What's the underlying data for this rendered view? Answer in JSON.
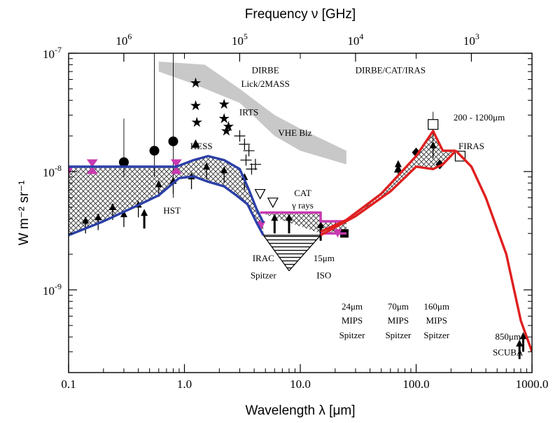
{
  "chart_data": {
    "type": "line",
    "title": "",
    "xlabel": "Wavelength λ [μm]",
    "ylabel": "W m⁻² sr⁻¹",
    "x2label": "Frequency ν [GHz]",
    "x_scale": "log",
    "y_scale": "log",
    "xlim": [
      0.1,
      1000
    ],
    "ylim": [
      2e-10,
      1e-07
    ],
    "x_ticks": [
      {
        "v": 0.1,
        "label": "0.1"
      },
      {
        "v": 1,
        "label": "1.0"
      },
      {
        "v": 10,
        "label": "10.0"
      },
      {
        "v": 100,
        "label": "100.0"
      },
      {
        "v": 1000,
        "label": "1000.0"
      }
    ],
    "y_ticks": [
      {
        "v": 1e-09,
        "base": "10",
        "exp": "-9"
      },
      {
        "v": 1e-08,
        "base": "10",
        "exp": "-8"
      },
      {
        "v": 1e-07,
        "base": "10",
        "exp": "-7"
      }
    ],
    "top_ticks": [
      {
        "v": 1000000,
        "base": "10",
        "exp": "6"
      },
      {
        "v": 100000,
        "base": "10",
        "exp": "5"
      },
      {
        "v": 10000,
        "base": "10",
        "exp": "4"
      },
      {
        "v": 1000,
        "base": "10",
        "exp": "3"
      }
    ],
    "grey_bands": [
      {
        "label": "DIRBE",
        "upper": [
          [
            0.6,
            8.5e-08
          ],
          [
            1.5,
            8e-08
          ],
          [
            3,
            5e-08
          ],
          [
            6,
            3e-08
          ],
          [
            10,
            2.3e-08
          ],
          [
            25,
            1.5e-08
          ]
        ],
        "lower": [
          [
            25,
            1.15e-08
          ],
          [
            10,
            1.5e-08
          ],
          [
            6,
            2e-08
          ],
          [
            3,
            3.8e-08
          ],
          [
            1.2,
            5.5e-08
          ],
          [
            0.6,
            7e-08
          ]
        ]
      }
    ],
    "series": [
      {
        "name": "",
        "color": "#2b3fa8",
        "upper": [
          [
            0.1,
            1.1e-08
          ],
          [
            0.3,
            1.1e-08
          ],
          [
            0.6,
            1.1e-08
          ],
          [
            0.85,
            1.1e-08
          ],
          [
            1.2,
            1.25e-08
          ],
          [
            1.6,
            1.35e-08
          ],
          [
            2.2,
            1.25e-08
          ],
          [
            3,
            1.05e-08
          ],
          [
            3.6,
            7e-09
          ],
          [
            4.2,
            4.8e-09
          ],
          [
            4.8,
            3.7e-09
          ]
        ],
        "lower": [
          [
            4.8,
            2.9e-09
          ],
          [
            4.2,
            3.7e-09
          ],
          [
            3.5,
            5.3e-09
          ],
          [
            2.8,
            6.3e-09
          ],
          [
            2.2,
            7.5e-09
          ],
          [
            1.6,
            8.2e-09
          ],
          [
            1.2,
            9.1e-09
          ],
          [
            0.9,
            8.8e-09
          ],
          [
            0.6,
            6.3e-09
          ],
          [
            0.4,
            5.2e-09
          ],
          [
            0.2,
            3.8e-09
          ],
          [
            0.1,
            2.9e-09
          ]
        ]
      },
      {
        "name": "",
        "color": "#000000",
        "upper": [
          [
            4.8,
            2.9e-09
          ],
          [
            15,
            2.9e-09
          ]
        ],
        "lower": [
          [
            15,
            2.9e-09
          ],
          [
            8,
            1.45e-09
          ],
          [
            4.8,
            2.9e-09
          ]
        ]
      },
      {
        "name": "",
        "color": "#c83ab0",
        "upper": [
          [
            4.5,
            4.5e-09
          ],
          [
            15,
            4.5e-09
          ],
          [
            15,
            3.8e-09
          ],
          [
            25,
            3.8e-09
          ]
        ],
        "lower": [
          [
            25,
            3e-09
          ],
          [
            15,
            3e-09
          ]
        ]
      },
      {
        "name": "",
        "color": "#e01f1f",
        "upper": [
          [
            15,
            3.1e-09
          ],
          [
            25,
            3.9e-09
          ],
          [
            50,
            6.5e-09
          ],
          [
            100,
            1.35e-08
          ],
          [
            140,
            2.2e-08
          ],
          [
            170,
            1.5e-08
          ],
          [
            220,
            1.5e-08
          ]
        ],
        "lower": [
          [
            220,
            1.5e-08
          ],
          [
            170,
            1.15e-08
          ],
          [
            140,
            1.05e-08
          ],
          [
            100,
            1.1e-08
          ],
          [
            60,
            6.8e-09
          ],
          [
            30,
            4.2e-09
          ],
          [
            15,
            2.9e-09
          ]
        ],
        "tail": [
          [
            220,
            1.5e-08
          ],
          [
            300,
            1.1e-08
          ],
          [
            400,
            6e-09
          ],
          [
            600,
            2e-09
          ],
          [
            800,
            5.5e-10
          ],
          [
            1000,
            3e-10
          ]
        ]
      }
    ],
    "annotations": [
      {
        "text": "DIRBE",
        "x": 5.0,
        "y": 6.8e-08
      },
      {
        "text": "Lick/2MASS",
        "x": 5.0,
        "y": 5.2e-08
      },
      {
        "text": "IRTS",
        "x": 3.6,
        "y": 3e-08
      },
      {
        "text": "VHE Blz",
        "x": 9.0,
        "y": 2e-08
      },
      {
        "text": "DIRBE/CAT/IRAS",
        "x": 60,
        "y": 6.8e-08
      },
      {
        "text": "200 - 1200μm",
        "x": 350,
        "y": 2.7e-08
      },
      {
        "text": "FIRAS",
        "x": 300,
        "y": 1.55e-08
      },
      {
        "text": "HESS",
        "x": 1.4,
        "y": 1.55e-08
      },
      {
        "text": "CAT",
        "x": 10.5,
        "y": 6.2e-09
      },
      {
        "text": "γ rays",
        "x": 10.5,
        "y": 4.9e-09
      },
      {
        "text": "HST",
        "x": 0.78,
        "y": 4.4e-09
      },
      {
        "text": "IRAC",
        "x": 4.8,
        "y": 1.75e-09
      },
      {
        "text": "Spitzer",
        "x": 4.8,
        "y": 1.25e-09
      },
      {
        "text": "15μm",
        "x": 16,
        "y": 1.75e-09
      },
      {
        "text": "ISO",
        "x": 16,
        "y": 1.25e-09
      },
      {
        "text": "24μm",
        "x": 28,
        "y": 6.8e-10
      },
      {
        "text": "MIPS",
        "x": 28,
        "y": 5.2e-10
      },
      {
        "text": "Spitzer",
        "x": 28,
        "y": 3.9e-10
      },
      {
        "text": "70μm",
        "x": 70,
        "y": 6.8e-10
      },
      {
        "text": "MIPS",
        "x": 70,
        "y": 5.2e-10
      },
      {
        "text": "Spitzer",
        "x": 70,
        "y": 3.9e-10
      },
      {
        "text": "160μm",
        "x": 150,
        "y": 6.8e-10
      },
      {
        "text": "MIPS",
        "x": 150,
        "y": 5.2e-10
      },
      {
        "text": "Spitzer",
        "x": 150,
        "y": 3.9e-10
      },
      {
        "text": "850μm",
        "x": 620,
        "y": 3.8e-10
      },
      {
        "text": "SCUBA",
        "x": 620,
        "y": 2.8e-10
      }
    ],
    "points": [
      {
        "x": 0.3,
        "y": 1.2e-08,
        "sym": "circle",
        "err": [
          9e-09,
          2.8e-08
        ]
      },
      {
        "x": 0.55,
        "y": 1.5e-08,
        "sym": "circle",
        "err": [
          9e-09,
          1e-07
        ]
      },
      {
        "x": 0.8,
        "y": 1.8e-08,
        "sym": "circle",
        "err": [
          6e-09,
          1e-07
        ]
      },
      {
        "x": 1.25,
        "y": 1.7e-08,
        "sym": "triangle"
      },
      {
        "x": 1.25,
        "y": 5.6e-08,
        "sym": "star"
      },
      {
        "x": 1.25,
        "y": 3.6e-08,
        "sym": "star"
      },
      {
        "x": 1.28,
        "y": 2.6e-08,
        "sym": "star"
      },
      {
        "x": 2.2,
        "y": 3.7e-08,
        "sym": "star"
      },
      {
        "x": 2.2,
        "y": 2.8e-08,
        "sym": "star"
      },
      {
        "x": 2.3,
        "y": 2.2e-08,
        "sym": "star"
      },
      {
        "x": 2.4,
        "y": 2.4e-08,
        "sym": "star"
      },
      {
        "x": 3.0,
        "y": 2e-08,
        "sym": "plus"
      },
      {
        "x": 3.3,
        "y": 1.7e-08,
        "sym": "plus"
      },
      {
        "x": 3.6,
        "y": 1.5e-08,
        "sym": "plus"
      },
      {
        "x": 3.4,
        "y": 1.25e-08,
        "sym": "plus"
      },
      {
        "x": 3.8,
        "y": 1.05e-08,
        "sym": "plus"
      },
      {
        "x": 4.1,
        "y": 1.15e-08,
        "sym": "plus"
      },
      {
        "x": 4.5,
        "y": 6.5e-09,
        "sym": "tridown"
      },
      {
        "x": 5.8,
        "y": 5.5e-09,
        "sym": "tridown"
      },
      {
        "x": 24,
        "y": 3e-09,
        "sym": "square"
      },
      {
        "x": 140,
        "y": 2.5e-08,
        "sym": "opensquare",
        "err": [
          1.8e-08,
          3.2e-08
        ]
      },
      {
        "x": 240,
        "y": 1.35e-08,
        "sym": "opensquare"
      },
      {
        "x": 70,
        "y": 1.05e-08,
        "sym": "triangle"
      },
      {
        "x": 100,
        "y": 1.45e-08,
        "sym": "diamond"
      },
      {
        "x": 160,
        "y": 1.15e-08,
        "sym": "diamond"
      },
      {
        "x": 0.1,
        "y": 1e-08,
        "sym": "mtridown"
      },
      {
        "x": 0.16,
        "y": 1.1e-08,
        "sym": "mbowtie"
      },
      {
        "x": 0.85,
        "y": 1.1e-08,
        "sym": "mbowtie"
      },
      {
        "x": 4.6,
        "y": 3.5e-09,
        "sym": "mtridown"
      },
      {
        "x": 21,
        "y": 3e-09,
        "sym": "mtridown"
      }
    ],
    "up_arrows": [
      {
        "x": 0.14,
        "y": 3e-09
      },
      {
        "x": 0.18,
        "y": 3.2e-09
      },
      {
        "x": 0.24,
        "y": 3.9e-09
      },
      {
        "x": 0.3,
        "y": 3.4e-09
      },
      {
        "x": 0.4,
        "y": 4.1e-09
      },
      {
        "x": 0.45,
        "y": 3.3e-09,
        "bold": true
      },
      {
        "x": 0.6,
        "y": 6.1e-09
      },
      {
        "x": 0.8,
        "y": 6.5e-09
      },
      {
        "x": 1.15,
        "y": 7.1e-09
      },
      {
        "x": 1.55,
        "y": 8.6e-09
      },
      {
        "x": 2.2,
        "y": 8e-09
      },
      {
        "x": 3.3,
        "y": 7e-09
      },
      {
        "x": 6.0,
        "y": 3e-09,
        "bold": true
      },
      {
        "x": 8.0,
        "y": 3e-09,
        "bold": true
      },
      {
        "x": 15,
        "y": 2.6e-09,
        "bold": true
      },
      {
        "x": 70,
        "y": 9e-09
      },
      {
        "x": 140,
        "y": 1.3e-08
      },
      {
        "x": 780,
        "y": 2.6e-10,
        "bold": true
      },
      {
        "x": 840,
        "y": 3e-10,
        "bold": true
      }
    ]
  }
}
